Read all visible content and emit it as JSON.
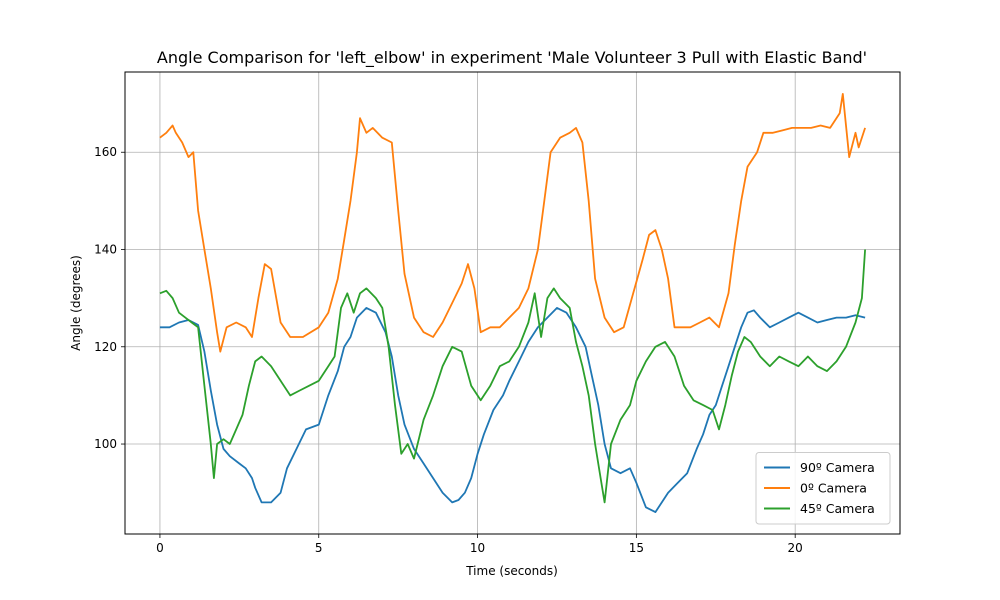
{
  "chart_data": {
    "type": "line",
    "title": "Angle Comparison for 'left_elbow' in experiment 'Male Volunteer 3 Pull with Elastic Band'",
    "xlabel": "Time (seconds)",
    "ylabel": "Angle (degrees)",
    "xlim": [
      -1.1,
      23.3
    ],
    "ylim": [
      81.5,
      176.5
    ],
    "xticks": [
      0,
      5,
      10,
      15,
      20
    ],
    "xtick_labels": [
      "0",
      "5",
      "10",
      "15",
      "20"
    ],
    "yticks": [
      100,
      120,
      140,
      160
    ],
    "ytick_labels": [
      "100",
      "120",
      "140",
      "160"
    ],
    "grid": true,
    "legend_position": "lower-right",
    "series": [
      {
        "name": "90º Camera",
        "color": "#1f77b4",
        "x": [
          0.0,
          0.3,
          0.6,
          0.9,
          1.2,
          1.4,
          1.6,
          1.8,
          2.0,
          2.2,
          2.5,
          2.7,
          2.9,
          3.0,
          3.2,
          3.5,
          3.8,
          4.0,
          4.3,
          4.6,
          5.0,
          5.3,
          5.6,
          5.8,
          6.0,
          6.2,
          6.5,
          6.8,
          7.1,
          7.3,
          7.5,
          7.7,
          8.0,
          8.3,
          8.6,
          8.9,
          9.2,
          9.4,
          9.6,
          9.8,
          10.0,
          10.2,
          10.5,
          10.8,
          11.0,
          11.3,
          11.6,
          11.9,
          12.2,
          12.5,
          12.8,
          13.1,
          13.4,
          13.6,
          13.8,
          14.0,
          14.2,
          14.5,
          14.8,
          15.0,
          15.3,
          15.6,
          15.8,
          16.0,
          16.3,
          16.6,
          16.9,
          17.1,
          17.3,
          17.5,
          17.7,
          17.9,
          18.1,
          18.3,
          18.5,
          18.7,
          18.9,
          19.2,
          19.5,
          19.8,
          20.1,
          20.4,
          20.7,
          21.0,
          21.3,
          21.6,
          21.9,
          22.2
        ],
        "values": [
          124,
          124,
          125,
          125.5,
          124.5,
          119,
          111,
          104,
          99,
          97.5,
          96,
          95,
          93,
          91,
          88,
          88,
          90,
          95,
          99,
          103,
          104,
          110,
          115,
          120,
          122,
          126,
          128,
          127,
          123,
          118,
          110,
          104,
          99,
          96,
          93,
          90,
          88,
          88.5,
          90,
          93,
          98,
          102,
          107,
          110,
          113,
          117,
          121,
          124,
          126,
          128,
          127,
          124,
          120,
          114,
          108,
          100,
          95,
          94,
          95,
          92,
          87,
          86,
          88,
          90,
          92,
          94,
          99,
          102,
          106,
          108,
          112,
          116,
          120,
          124,
          127,
          127.5,
          126,
          124,
          125,
          126,
          127,
          126,
          125,
          125.5,
          126,
          126,
          126.5,
          126
        ]
      },
      {
        "name": "0º Camera",
        "color": "#ff7f0e",
        "x": [
          0.0,
          0.2,
          0.4,
          0.5,
          0.7,
          0.9,
          1.05,
          1.2,
          1.4,
          1.6,
          1.8,
          1.9,
          2.1,
          2.4,
          2.7,
          2.9,
          3.1,
          3.3,
          3.5,
          3.8,
          4.1,
          4.5,
          5.0,
          5.3,
          5.6,
          5.8,
          6.0,
          6.2,
          6.3,
          6.5,
          6.7,
          7.0,
          7.3,
          7.5,
          7.7,
          8.0,
          8.3,
          8.6,
          8.9,
          9.2,
          9.5,
          9.7,
          9.9,
          10.1,
          10.4,
          10.7,
          11.0,
          11.3,
          11.6,
          11.9,
          12.1,
          12.3,
          12.6,
          12.9,
          13.1,
          13.3,
          13.5,
          13.7,
          14.0,
          14.3,
          14.6,
          14.9,
          15.2,
          15.4,
          15.6,
          15.8,
          16.0,
          16.2,
          16.5,
          16.7,
          17.0,
          17.3,
          17.6,
          17.9,
          18.1,
          18.3,
          18.5,
          18.8,
          19.0,
          19.3,
          19.6,
          19.9,
          20.2,
          20.5,
          20.8,
          21.1,
          21.4,
          21.5,
          21.7,
          21.9,
          22.0,
          22.2
        ],
        "values": [
          163,
          164,
          165.5,
          164,
          162,
          159,
          160,
          148,
          140,
          132,
          123,
          119,
          124,
          125,
          124,
          122,
          130,
          137,
          136,
          125,
          122,
          122,
          124,
          127,
          134,
          142,
          150,
          160,
          167,
          164,
          165,
          163,
          162,
          148,
          135,
          126,
          123,
          122,
          125,
          129,
          133,
          137,
          132,
          123,
          124,
          124,
          126,
          128,
          132,
          140,
          150,
          160,
          163,
          164,
          165,
          162,
          150,
          134,
          126,
          123,
          124,
          131,
          138,
          143,
          144,
          140,
          134,
          124,
          124,
          124,
          125,
          126,
          124,
          131,
          141,
          150,
          157,
          160,
          164,
          164,
          164.5,
          165,
          165,
          165,
          165.5,
          165,
          168,
          172,
          159,
          164,
          161,
          165
        ]
      },
      {
        "name": "45º Camera",
        "color": "#2ca02c",
        "x": [
          0.0,
          0.2,
          0.4,
          0.6,
          0.8,
          1.0,
          1.2,
          1.4,
          1.6,
          1.7,
          1.8,
          2.0,
          2.2,
          2.4,
          2.6,
          2.8,
          3.0,
          3.2,
          3.5,
          3.8,
          4.1,
          4.4,
          4.7,
          5.0,
          5.3,
          5.5,
          5.7,
          5.9,
          6.1,
          6.3,
          6.5,
          6.8,
          7.0,
          7.2,
          7.4,
          7.6,
          7.8,
          8.0,
          8.3,
          8.6,
          8.9,
          9.2,
          9.5,
          9.8,
          10.1,
          10.4,
          10.7,
          11.0,
          11.3,
          11.6,
          11.8,
          12.0,
          12.2,
          12.4,
          12.6,
          12.9,
          13.1,
          13.3,
          13.5,
          13.7,
          13.9,
          14.0,
          14.2,
          14.5,
          14.8,
          15.0,
          15.3,
          15.6,
          15.9,
          16.2,
          16.5,
          16.8,
          17.1,
          17.4,
          17.6,
          17.8,
          18.0,
          18.2,
          18.4,
          18.6,
          18.9,
          19.2,
          19.5,
          19.8,
          20.1,
          20.4,
          20.7,
          21.0,
          21.3,
          21.6,
          21.9,
          22.1,
          22.2
        ],
        "values": [
          131,
          131.5,
          130,
          127,
          126,
          125,
          124,
          112,
          100,
          93,
          100,
          101,
          100,
          103,
          106,
          112,
          117,
          118,
          116,
          113,
          110,
          111,
          112,
          113,
          116,
          118,
          128,
          131,
          127,
          131,
          132,
          130,
          128,
          120,
          108,
          98,
          100,
          97,
          105,
          110,
          116,
          120,
          119,
          112,
          109,
          112,
          116,
          117,
          120,
          125,
          131,
          122,
          130,
          132,
          130,
          128,
          121,
          116,
          110,
          100,
          92,
          88,
          100,
          105,
          108,
          113,
          117,
          120,
          121,
          118,
          112,
          109,
          108,
          107,
          103,
          108,
          114,
          119,
          122,
          121,
          118,
          116,
          118,
          117,
          116,
          118,
          116,
          115,
          117,
          120,
          125,
          130,
          140
        ]
      }
    ]
  }
}
